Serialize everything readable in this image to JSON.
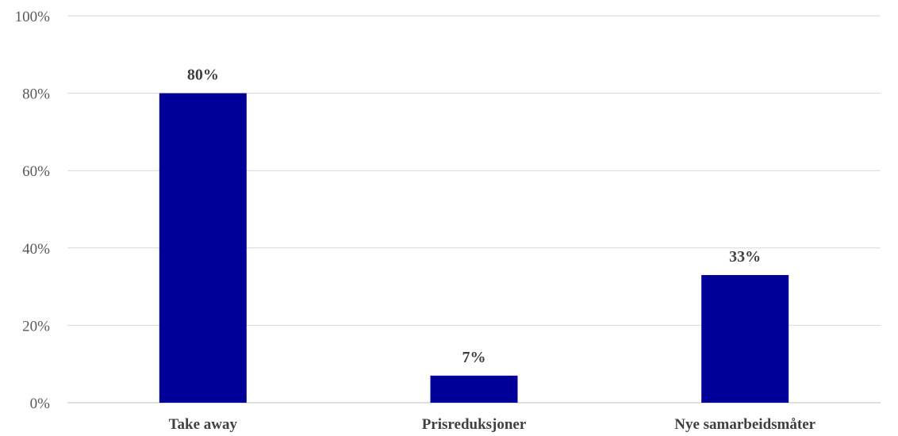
{
  "chart_data": {
    "type": "bar",
    "categories": [
      "Take away",
      "Prisreduksjoner",
      "Nye samarbeidsmåter"
    ],
    "values": [
      80,
      7,
      33
    ],
    "data_labels": [
      "80%",
      "7%",
      "33%"
    ],
    "ylim": [
      0,
      100
    ],
    "yticks": [
      0,
      20,
      40,
      60,
      80,
      100
    ],
    "ytick_labels": [
      "0%",
      "20%",
      "40%",
      "60%",
      "80%",
      "100%"
    ],
    "title": "",
    "xlabel": "",
    "ylabel": "",
    "grid": true,
    "legend": "none",
    "bar_color": "#000099"
  }
}
